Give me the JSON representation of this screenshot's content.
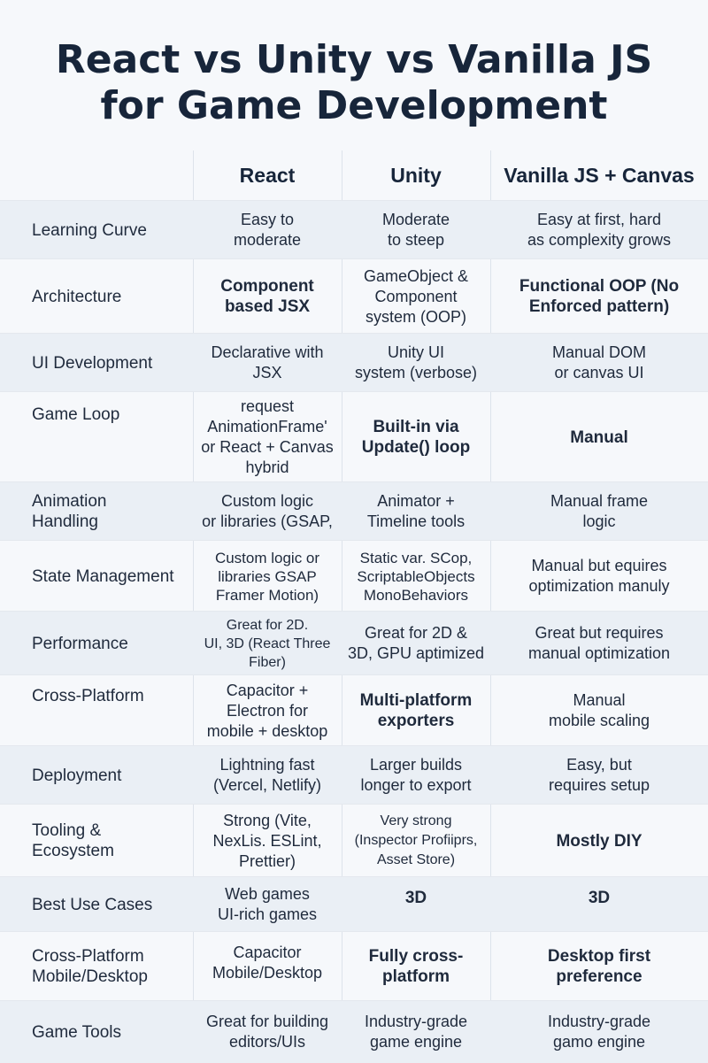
{
  "title": {
    "line1": "React vs Unity vs Vanilla JS",
    "line2": "for Game Development"
  },
  "columns": [
    "React",
    "Unity",
    "Vanilla JS + Canvas"
  ],
  "rows": [
    {
      "label": "Learning Curve",
      "react": "Easy to\nmoderate",
      "unity": "Moderate\nto steep",
      "vanilla": "Easy at first, hard\nas complexity grows"
    },
    {
      "label": "Architecture",
      "react": "Component\nbased JSX",
      "unity": "GameObject &\nComponent\nsystem (OOP)",
      "vanilla": "Functional OOP (No\nEnforced pattern)"
    },
    {
      "label": "UI Development",
      "react": "Declarative with\nJSX",
      "unity": "Unity UI\nsystem (verbose)",
      "vanilla": "Manual DOM\nor canvas UI"
    },
    {
      "label": "Game Loop",
      "react": "request\nAnimationFrame'\nor React + Canvas\nhybrid",
      "unity": "Built-in via\nUpdate() loop",
      "vanilla": "Manual"
    },
    {
      "label": "Animation\nHandling",
      "react": "Custom logic\nor libraries (GSAP,",
      "unity": "Animator +\nTimeline tools",
      "vanilla": "Manual frame\nlogic"
    },
    {
      "label": "State Management",
      "react": "Custom logic or\nlibraries GSAP\nFramer Motion)",
      "unity": "Static var. SCop,\nScriptableObjects\nMonoBehaviors",
      "vanilla": "Manual but equires\noptimization manuly"
    },
    {
      "label": "Performance",
      "react": "Great for 2D.\nUI, 3D (React Three\nFiber)",
      "unity": "Great for 2D &\n3D, GPU aptimized",
      "vanilla": "Great but requires\nmanual optimization"
    },
    {
      "label": "Cross-Platform",
      "react": "Capacitor +\nElectron for\nmobile + desktop",
      "unity": "Multi-platform\nexporters",
      "vanilla": "Manual\nmobile scaling"
    },
    {
      "label": "Deployment",
      "react": "Lightning fast\n(Vercel, Netlify)",
      "unity": "Larger builds\nlonger to export",
      "vanilla": "Easy, but\nrequires setup"
    },
    {
      "label": "Tooling &\nEcosystem",
      "react": "Strong (Vite,\nNexLis. ESLint,\nPrettier)",
      "unity": "Very strong\n(Inspector Profiiprs,\nAsset Store)",
      "vanilla": "Mostly DIY"
    },
    {
      "label": "Best Use Cases",
      "react": "Web games\nUI-rich games",
      "unity": "3D",
      "vanilla": "3D"
    },
    {
      "label": "Cross-Platform\nMobile/Desktop",
      "react": "Capacitor\nMobile/Desktop",
      "unity": "Fully cross-\nplatform",
      "vanilla": "Desktop first\npreference"
    },
    {
      "label": "Game Tools",
      "react": "Great for building\neditors/UIs",
      "unity": "Industry-grade\ngame engine",
      "vanilla": "Industry-grade\ngamo engine"
    }
  ]
}
